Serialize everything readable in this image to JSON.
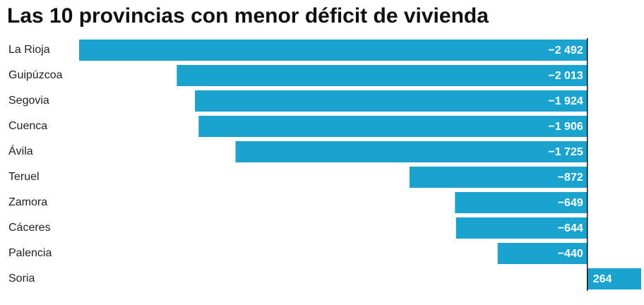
{
  "chart_data": {
    "type": "bar",
    "orientation": "horizontal",
    "title": "Las 10 provincias con menor déficit de vivienda",
    "categories": [
      "La Rioja",
      "Guipúzcoa",
      "Segovia",
      "Cuenca",
      "Ávila",
      "Teruel",
      "Zamora",
      "Cáceres",
      "Palencia",
      "Soria"
    ],
    "values": [
      -2492,
      -2013,
      -1924,
      -1906,
      -1725,
      -872,
      -649,
      -644,
      -440,
      264
    ],
    "value_labels": [
      "−2 492",
      "−2 013",
      "−1 924",
      "−1 906",
      "−1 725",
      "−872",
      "−649",
      "−644",
      "−440",
      "264"
    ],
    "color": "#1ba3cf",
    "xlim": [
      -2492,
      264
    ]
  }
}
